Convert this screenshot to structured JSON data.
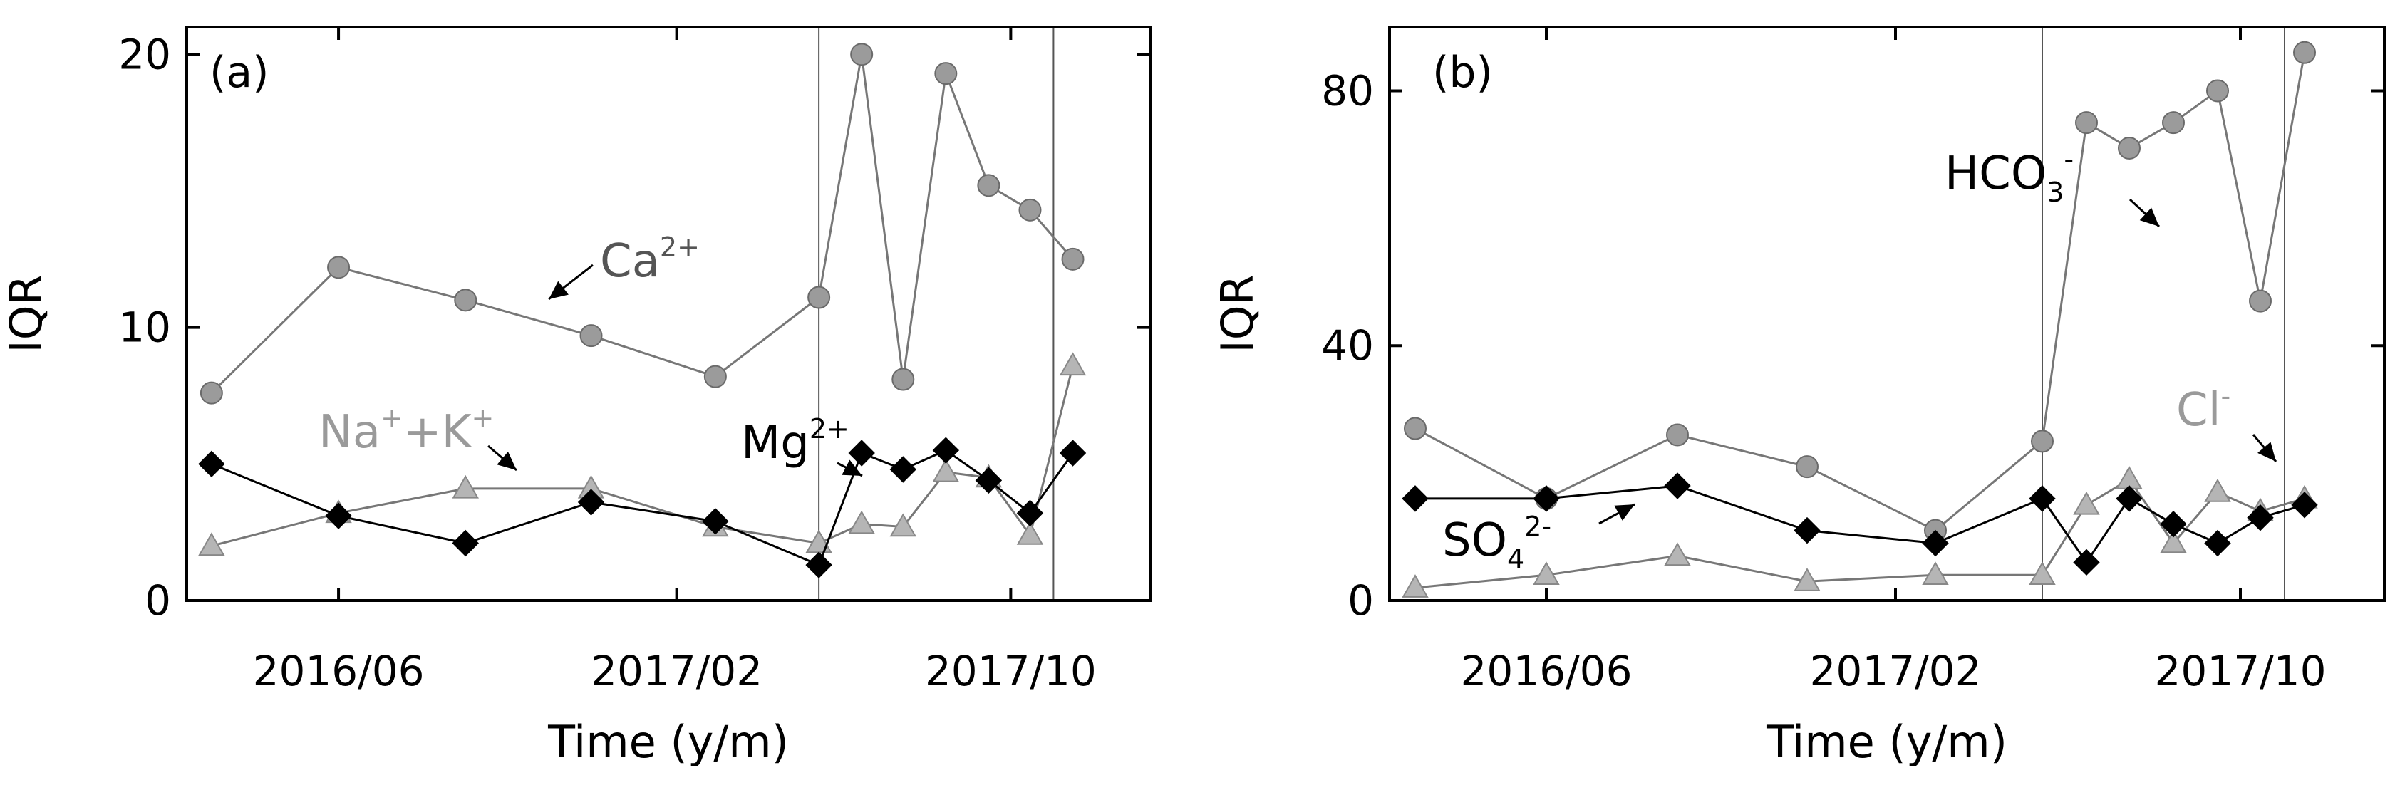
{
  "chart_data": [
    {
      "panel_label": "(a)",
      "type": "line",
      "xlabel": "Time (y/m)",
      "ylabel": "IQR",
      "ylim": [
        0,
        21
      ],
      "yticks": [
        0,
        10,
        20
      ],
      "xlim": [
        "2016-02-12",
        "2018-01-10"
      ],
      "xticks": [
        {
          "date": "2016-06-01",
          "label": "2016/06"
        },
        {
          "date": "2017-02-01",
          "label": "2017/02"
        },
        {
          "date": "2017-10-01",
          "label": "2017/10"
        }
      ],
      "vlines": [
        "2017-05-15",
        "2017-11-01"
      ],
      "series": [
        {
          "name": "Ca2+",
          "color": "#8a8a8a",
          "marker": "circle",
          "x": [
            "2016-03-01",
            "2016-06-01",
            "2016-09-01",
            "2016-12-01",
            "2017-03-01",
            "2017-05-15",
            "2017-06-15",
            "2017-07-15",
            "2017-08-15",
            "2017-09-15",
            "2017-10-15",
            "2017-11-15"
          ],
          "y": [
            7.6,
            12.2,
            11.0,
            9.7,
            8.2,
            11.1,
            20.0,
            8.1,
            19.3,
            15.2,
            14.3,
            12.5
          ]
        },
        {
          "name": "Na++K+",
          "color": "#9a9a9a",
          "marker": "triangle",
          "x": [
            "2016-03-01",
            "2016-06-01",
            "2016-09-01",
            "2016-12-01",
            "2017-03-01",
            "2017-05-15",
            "2017-06-15",
            "2017-07-15",
            "2017-08-15",
            "2017-09-15",
            "2017-10-15",
            "2017-11-15"
          ],
          "y": [
            2.0,
            3.2,
            4.1,
            4.1,
            2.7,
            2.1,
            2.8,
            2.7,
            4.7,
            4.5,
            2.4,
            8.6
          ]
        },
        {
          "name": "Mg2+",
          "color": "#000000",
          "marker": "diamond",
          "x": [
            "2016-03-01",
            "2016-06-01",
            "2016-09-01",
            "2016-12-01",
            "2017-03-01",
            "2017-05-15",
            "2017-06-15",
            "2017-07-15",
            "2017-08-15",
            "2017-09-15",
            "2017-10-15",
            "2017-11-15"
          ],
          "y": [
            5.0,
            3.1,
            2.1,
            3.6,
            2.9,
            1.3,
            5.4,
            4.8,
            5.5,
            4.4,
            3.2,
            5.4
          ]
        }
      ],
      "annotations": [
        {
          "base": "Ca",
          "sup": "2+",
          "sub": "",
          "color": "#555555"
        },
        {
          "base": "Na",
          "sup": "+",
          "sub": "",
          "base2": "+K",
          "sup2": "+",
          "color": "#9a9a9a"
        },
        {
          "base": "Mg",
          "sup": "2+",
          "sub": "",
          "color": "#000000"
        }
      ]
    },
    {
      "panel_label": "(b)",
      "type": "line",
      "xlabel": "Time (y/m)",
      "ylabel": "IQR",
      "ylim": [
        0,
        90
      ],
      "yticks": [
        0,
        40,
        80
      ],
      "xlim": [
        "2016-02-12",
        "2018-01-10"
      ],
      "xticks": [
        {
          "date": "2016-06-01",
          "label": "2016/06"
        },
        {
          "date": "2017-02-01",
          "label": "2017/02"
        },
        {
          "date": "2017-10-01",
          "label": "2017/10"
        }
      ],
      "vlines": [
        "2017-05-15",
        "2017-11-01"
      ],
      "series": [
        {
          "name": "HCO3-",
          "color": "#8a8a8a",
          "marker": "circle",
          "x": [
            "2016-03-01",
            "2016-06-01",
            "2016-09-01",
            "2016-12-01",
            "2017-03-01",
            "2017-05-15",
            "2017-06-15",
            "2017-07-15",
            "2017-08-15",
            "2017-09-15",
            "2017-10-15",
            "2017-11-15"
          ],
          "y": [
            27,
            16,
            26,
            21,
            11,
            25,
            75,
            71,
            75,
            80,
            47,
            86
          ]
        },
        {
          "name": "Cl-",
          "color": "#9a9a9a",
          "marker": "triangle",
          "x": [
            "2016-03-01",
            "2016-06-01",
            "2016-09-01",
            "2016-12-01",
            "2017-03-01",
            "2017-05-15",
            "2017-06-15",
            "2017-07-15",
            "2017-08-15",
            "2017-09-15",
            "2017-10-15",
            "2017-11-15"
          ],
          "y": [
            2,
            4,
            7,
            3,
            4,
            4,
            15,
            19,
            9,
            17,
            14,
            16
          ]
        },
        {
          "name": "SO42-",
          "color": "#000000",
          "marker": "diamond",
          "x": [
            "2016-03-01",
            "2016-06-01",
            "2016-09-01",
            "2016-12-01",
            "2017-03-01",
            "2017-05-15",
            "2017-06-15",
            "2017-07-15",
            "2017-08-15",
            "2017-09-15",
            "2017-10-15",
            "2017-11-15"
          ],
          "y": [
            16,
            16,
            18,
            11,
            9,
            16,
            6,
            16,
            12,
            9,
            13,
            15
          ]
        }
      ],
      "annotations": [
        {
          "base": "HCO",
          "sub": "3",
          "sup": "-",
          "color": "#000000"
        },
        {
          "base": "Cl",
          "sup": "-",
          "sub": "",
          "color": "#9a9a9a"
        },
        {
          "base": "SO",
          "sub": "4",
          "sup": "2-",
          "color": "#000000"
        }
      ]
    }
  ]
}
